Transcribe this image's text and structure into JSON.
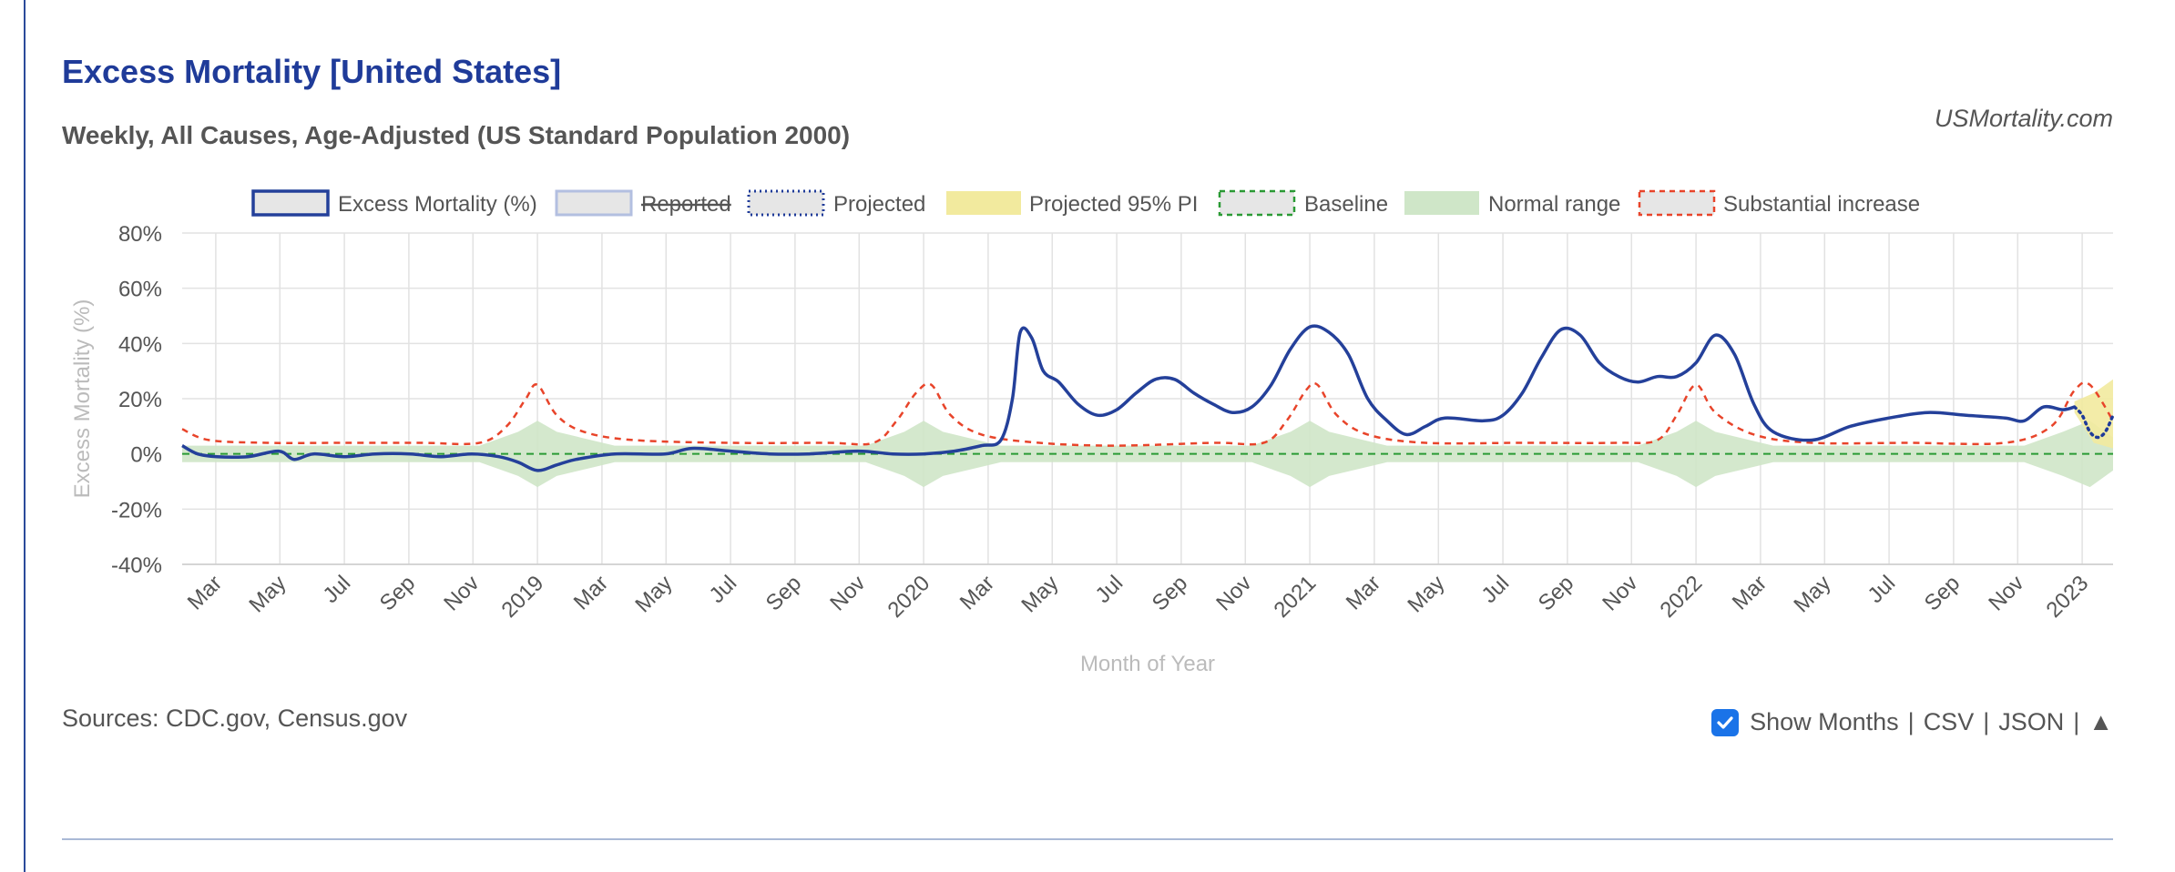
{
  "header": {
    "title": "Excess Mortality [United States]",
    "subtitle": "Weekly, All Causes, Age-Adjusted (US Standard Population 2000)",
    "brand": "USMortality.com"
  },
  "footer": {
    "sources": "Sources: CDC.gov, Census.gov",
    "show_months_label": "Show Months",
    "show_months_checked": true,
    "csv_label": "CSV",
    "json_label": "JSON",
    "up_label": "▲",
    "separator": "|"
  },
  "colors": {
    "excess": "#24409a",
    "reported": "#b3bfe0",
    "projected": "#1f3b99",
    "pi": "#f2ea9e",
    "baseline": "#2a9a34",
    "normal_range": "#cfe6c8",
    "substantial": "#e8442a"
  },
  "chart_data": {
    "type": "line",
    "ylabel": "Excess Mortality (%)",
    "xlabel": "Month of Year",
    "ylim": [
      -40,
      80
    ],
    "y_ticks": [
      80,
      60,
      40,
      20,
      0,
      -20,
      -40
    ],
    "y_tick_labels": [
      "80%",
      "60%",
      "40%",
      "20%",
      "0%",
      "-20%",
      "-40%"
    ],
    "x_range": [
      2018.08,
      2023.08
    ],
    "x_ticks": [
      {
        "label": "Mar",
        "x": 2018.167
      },
      {
        "label": "May",
        "x": 2018.333
      },
      {
        "label": "Jul",
        "x": 2018.5
      },
      {
        "label": "Sep",
        "x": 2018.667
      },
      {
        "label": "Nov",
        "x": 2018.833
      },
      {
        "label": "2019",
        "x": 2019.0
      },
      {
        "label": "Mar",
        "x": 2019.167
      },
      {
        "label": "May",
        "x": 2019.333
      },
      {
        "label": "Jul",
        "x": 2019.5
      },
      {
        "label": "Sep",
        "x": 2019.667
      },
      {
        "label": "Nov",
        "x": 2019.833
      },
      {
        "label": "2020",
        "x": 2020.0
      },
      {
        "label": "Mar",
        "x": 2020.167
      },
      {
        "label": "May",
        "x": 2020.333
      },
      {
        "label": "Jul",
        "x": 2020.5
      },
      {
        "label": "Sep",
        "x": 2020.667
      },
      {
        "label": "Nov",
        "x": 2020.833
      },
      {
        "label": "2021",
        "x": 2021.0
      },
      {
        "label": "Mar",
        "x": 2021.167
      },
      {
        "label": "May",
        "x": 2021.333
      },
      {
        "label": "Jul",
        "x": 2021.5
      },
      {
        "label": "Sep",
        "x": 2021.667
      },
      {
        "label": "Nov",
        "x": 2021.833
      },
      {
        "label": "2022",
        "x": 2022.0
      },
      {
        "label": "Mar",
        "x": 2022.167
      },
      {
        "label": "May",
        "x": 2022.333
      },
      {
        "label": "Jul",
        "x": 2022.5
      },
      {
        "label": "Sep",
        "x": 2022.667
      },
      {
        "label": "Nov",
        "x": 2022.833
      },
      {
        "label": "2023",
        "x": 2023.0
      }
    ],
    "legend_position": "top",
    "grid": true,
    "legend": [
      {
        "key": "excess",
        "label": "Excess Mortality (%)",
        "style": "solid"
      },
      {
        "key": "reported",
        "label": "Reported",
        "style": "solid",
        "hidden": true
      },
      {
        "key": "projected",
        "label": "Projected",
        "style": "dotted"
      },
      {
        "key": "pi",
        "label": "Projected 95% PI",
        "style": "fill"
      },
      {
        "key": "baseline",
        "label": "Baseline",
        "style": "dashed"
      },
      {
        "key": "normal_range",
        "label": "Normal range",
        "style": "fill"
      },
      {
        "key": "substantial",
        "label": "Substantial increase",
        "style": "dashed"
      }
    ],
    "series": {
      "excess": [
        [
          2018.08,
          3
        ],
        [
          2018.12,
          0
        ],
        [
          2018.17,
          -1
        ],
        [
          2018.25,
          -1
        ],
        [
          2018.33,
          1
        ],
        [
          2018.37,
          -2
        ],
        [
          2018.42,
          0
        ],
        [
          2018.5,
          -1
        ],
        [
          2018.58,
          0
        ],
        [
          2018.67,
          0
        ],
        [
          2018.75,
          -1
        ],
        [
          2018.83,
          0
        ],
        [
          2018.9,
          -1
        ],
        [
          2018.95,
          -3
        ],
        [
          2019.0,
          -6
        ],
        [
          2019.05,
          -4
        ],
        [
          2019.1,
          -2
        ],
        [
          2019.2,
          0
        ],
        [
          2019.33,
          0
        ],
        [
          2019.4,
          2
        ],
        [
          2019.5,
          1
        ],
        [
          2019.6,
          0
        ],
        [
          2019.7,
          0
        ],
        [
          2019.83,
          1
        ],
        [
          2019.92,
          0
        ],
        [
          2020.0,
          0
        ],
        [
          2020.08,
          1
        ],
        [
          2020.15,
          3
        ],
        [
          2020.2,
          5
        ],
        [
          2020.23,
          20
        ],
        [
          2020.25,
          44
        ],
        [
          2020.28,
          42
        ],
        [
          2020.31,
          30
        ],
        [
          2020.35,
          26
        ],
        [
          2020.4,
          18
        ],
        [
          2020.45,
          14
        ],
        [
          2020.5,
          16
        ],
        [
          2020.55,
          22
        ],
        [
          2020.6,
          27
        ],
        [
          2020.65,
          27
        ],
        [
          2020.7,
          22
        ],
        [
          2020.75,
          18
        ],
        [
          2020.8,
          15
        ],
        [
          2020.85,
          17
        ],
        [
          2020.9,
          25
        ],
        [
          2020.95,
          38
        ],
        [
          2021.0,
          46
        ],
        [
          2021.05,
          44
        ],
        [
          2021.1,
          36
        ],
        [
          2021.15,
          20
        ],
        [
          2021.2,
          12
        ],
        [
          2021.25,
          7
        ],
        [
          2021.3,
          10
        ],
        [
          2021.35,
          13
        ],
        [
          2021.45,
          12
        ],
        [
          2021.5,
          14
        ],
        [
          2021.55,
          22
        ],
        [
          2021.6,
          35
        ],
        [
          2021.65,
          45
        ],
        [
          2021.7,
          43
        ],
        [
          2021.75,
          33
        ],
        [
          2021.8,
          28
        ],
        [
          2021.85,
          26
        ],
        [
          2021.9,
          28
        ],
        [
          2021.95,
          28
        ],
        [
          2022.0,
          33
        ],
        [
          2022.05,
          43
        ],
        [
          2022.1,
          36
        ],
        [
          2022.15,
          18
        ],
        [
          2022.2,
          8
        ],
        [
          2022.3,
          5
        ],
        [
          2022.4,
          10
        ],
        [
          2022.5,
          13
        ],
        [
          2022.6,
          15
        ],
        [
          2022.7,
          14
        ],
        [
          2022.8,
          13
        ],
        [
          2022.85,
          12
        ],
        [
          2022.9,
          17
        ],
        [
          2022.95,
          16
        ],
        [
          2022.98,
          17
        ]
      ],
      "projected": [
        [
          2022.98,
          17
        ],
        [
          2023.0,
          14
        ],
        [
          2023.02,
          8
        ],
        [
          2023.04,
          6
        ],
        [
          2023.06,
          8
        ],
        [
          2023.08,
          14
        ]
      ],
      "substantial": [
        [
          2018.08,
          9
        ],
        [
          2018.15,
          5
        ],
        [
          2018.3,
          4
        ],
        [
          2018.5,
          4
        ],
        [
          2018.7,
          4
        ],
        [
          2018.85,
          4
        ],
        [
          2018.92,
          10
        ],
        [
          2018.97,
          20
        ],
        [
          2019.0,
          25
        ],
        [
          2019.05,
          14
        ],
        [
          2019.12,
          8
        ],
        [
          2019.25,
          5
        ],
        [
          2019.5,
          4
        ],
        [
          2019.75,
          4
        ],
        [
          2019.87,
          4
        ],
        [
          2019.93,
          12
        ],
        [
          2019.98,
          22
        ],
        [
          2020.02,
          25
        ],
        [
          2020.07,
          14
        ],
        [
          2020.15,
          7
        ],
        [
          2020.3,
          4
        ],
        [
          2020.5,
          3
        ],
        [
          2020.75,
          4
        ],
        [
          2020.88,
          4
        ],
        [
          2020.94,
          12
        ],
        [
          2020.99,
          23
        ],
        [
          2021.02,
          25
        ],
        [
          2021.07,
          14
        ],
        [
          2021.15,
          7
        ],
        [
          2021.3,
          4
        ],
        [
          2021.55,
          4
        ],
        [
          2021.8,
          4
        ],
        [
          2021.9,
          5
        ],
        [
          2021.95,
          14
        ],
        [
          2022.0,
          25
        ],
        [
          2022.05,
          15
        ],
        [
          2022.15,
          7
        ],
        [
          2022.3,
          4
        ],
        [
          2022.55,
          4
        ],
        [
          2022.8,
          4
        ],
        [
          2022.92,
          10
        ],
        [
          2022.98,
          23
        ],
        [
          2023.02,
          25
        ],
        [
          2023.08,
          12
        ]
      ],
      "normal_range": {
        "x": [
          2018.08,
          2018.4,
          2018.85,
          2018.95,
          2019.0,
          2019.05,
          2019.2,
          2019.5,
          2019.85,
          2019.95,
          2020.0,
          2020.05,
          2020.2,
          2020.5,
          2020.85,
          2020.95,
          2021.0,
          2021.05,
          2021.2,
          2021.5,
          2021.85,
          2021.95,
          2022.0,
          2022.05,
          2022.2,
          2022.5,
          2022.85,
          2022.95,
          2023.02,
          2023.08
        ],
        "upper": [
          3,
          3,
          3,
          8,
          12,
          8,
          3,
          3,
          3,
          8,
          12,
          8,
          3,
          3,
          3,
          8,
          12,
          8,
          3,
          3,
          3,
          8,
          12,
          8,
          3,
          3,
          3,
          8,
          12,
          6
        ],
        "lower": [
          -3,
          -3,
          -3,
          -8,
          -12,
          -8,
          -3,
          -3,
          -3,
          -8,
          -12,
          -8,
          -3,
          -3,
          -3,
          -8,
          -12,
          -8,
          -3,
          -3,
          -3,
          -8,
          -12,
          -8,
          -3,
          -3,
          -3,
          -8,
          -12,
          -6
        ]
      },
      "pi": {
        "x": [
          2022.98,
          2023.03,
          2023.08
        ],
        "upper": [
          19,
          22,
          27
        ],
        "lower": [
          15,
          4,
          2
        ]
      },
      "baseline": [
        [
          2018.08,
          0
        ],
        [
          2023.08,
          0
        ]
      ]
    }
  }
}
